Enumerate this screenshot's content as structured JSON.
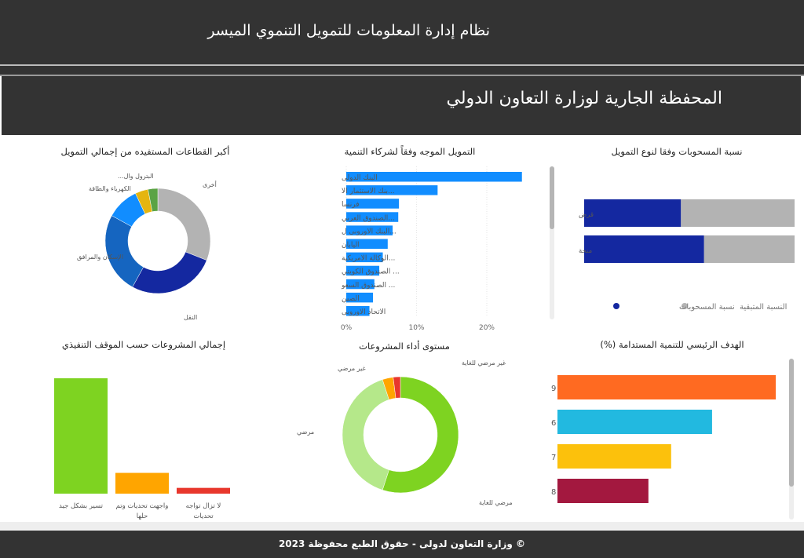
{
  "header": {
    "system_title": "نظام إدارة المعلومات للتمويل التنموي الميسر",
    "page_title": "المحفظة الجارية لوزارة التعاون الدولي"
  },
  "footer": {
    "copyright": "© وزارة التعاون لدولى - حقوق الطبع محفوظة 2023"
  },
  "chart_data": [
    {
      "id": "sectors",
      "type": "pie",
      "title": "أكبر القطاعات المستفيده من إجمالي التمويل",
      "donut": true,
      "categories": [
        "أخرى",
        "النقل",
        "الإسكان والمرافق",
        "الكهرباء والطاقة",
        "البترول وال...",
        ""
      ],
      "values": [
        31,
        27,
        25,
        10,
        4,
        3
      ],
      "colors": [
        "#b3b3b3",
        "#1428a0",
        "#1565c0",
        "#118dff",
        "#e5b50f",
        "#5aa344"
      ]
    },
    {
      "id": "partners",
      "type": "bar",
      "orientation": "horizontal",
      "title": "التمويل الموجه وفقاً لشركاء التنمية",
      "categories": [
        "البنك الدولى",
        "...بنك الاستثمار الا",
        "فرنسا",
        "...الصندوق العربي",
        "...البنك الاوروبى ل",
        "اليابان",
        "...الوكالة الامريكية",
        "... الصندوق الكويتي",
        "... الصندوق السعو",
        "الصين",
        "الاتحاد الاوروبى"
      ],
      "values": [
        25,
        13,
        7.5,
        7.4,
        6.6,
        5.9,
        5.2,
        4.7,
        4,
        3.8,
        3.3
      ],
      "xticks": [
        "0%",
        "10%",
        "20%"
      ],
      "xlim": [
        0,
        26
      ],
      "unit": "%",
      "color": "#118dff",
      "grid": true
    },
    {
      "id": "withdrawals",
      "type": "bar",
      "orientation": "horizontal",
      "stacked": true,
      "title": "نسبة المسحوبات وفقا لنوع التمويل",
      "categories": [
        "قرض",
        "منحة"
      ],
      "series": [
        {
          "name": "نسبة المسحوبات",
          "values": [
            46,
            57
          ],
          "color": "#1428a0"
        },
        {
          "name": "النسبة المتبقية",
          "values": [
            54,
            43
          ],
          "color": "#b3b3b3"
        }
      ],
      "legend": "bottom",
      "unit": "%"
    },
    {
      "id": "status",
      "type": "bar",
      "title": "إجمالي المشروعات حسب الموقف التنفيذي",
      "categories": [
        "تسير بشكل جيد",
        "واجهت تحديات وتم حلها",
        "لا تزال تواجه تحديات"
      ],
      "values": [
        100,
        18,
        5
      ],
      "colors": [
        "#7ed321",
        "#ffa500",
        "#e8372c"
      ]
    },
    {
      "id": "performance",
      "type": "pie",
      "donut": true,
      "title": "مستوى أداء المشروعات",
      "categories": [
        "مرضي للغاية",
        "مرضي",
        "غير مرضي",
        "غير مرضي للغاية"
      ],
      "values": [
        55,
        40,
        3,
        2
      ],
      "colors": [
        "#7ed321",
        "#b5e88a",
        "#ffa500",
        "#e8372c"
      ]
    },
    {
      "id": "sdg",
      "type": "bar",
      "orientation": "horizontal",
      "title": "الهدف الرئيسي للتنمية المستدامة (%)",
      "categories": [
        "9",
        "6",
        "7",
        "8"
      ],
      "values": [
        24,
        17,
        12.5,
        10
      ],
      "colors": [
        "#ff6a21",
        "#22b9e0",
        "#fcc10c",
        "#a3183f"
      ]
    }
  ]
}
